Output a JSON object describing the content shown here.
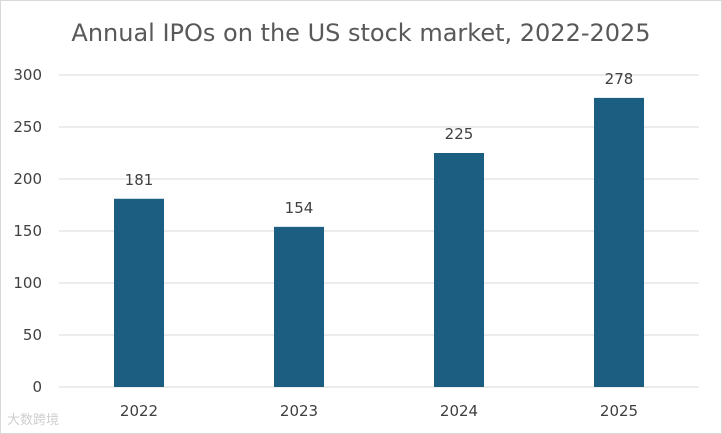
{
  "chart_data": {
    "type": "bar",
    "title": "Annual IPOs on the US stock market, 2022-2025",
    "categories": [
      "2022",
      "2023",
      "2024",
      "2025"
    ],
    "values": [
      181,
      154,
      225,
      278
    ],
    "data_labels": [
      "181",
      "154",
      "225",
      "278"
    ],
    "yticks": [
      0,
      50,
      100,
      150,
      200,
      250,
      300
    ],
    "ylim": [
      0,
      300
    ],
    "xlabel": "",
    "ylabel": "",
    "grid": true,
    "bar_color": "#1b5e82",
    "grid_color": "#d9d9d9"
  },
  "watermark": "大数跨境"
}
